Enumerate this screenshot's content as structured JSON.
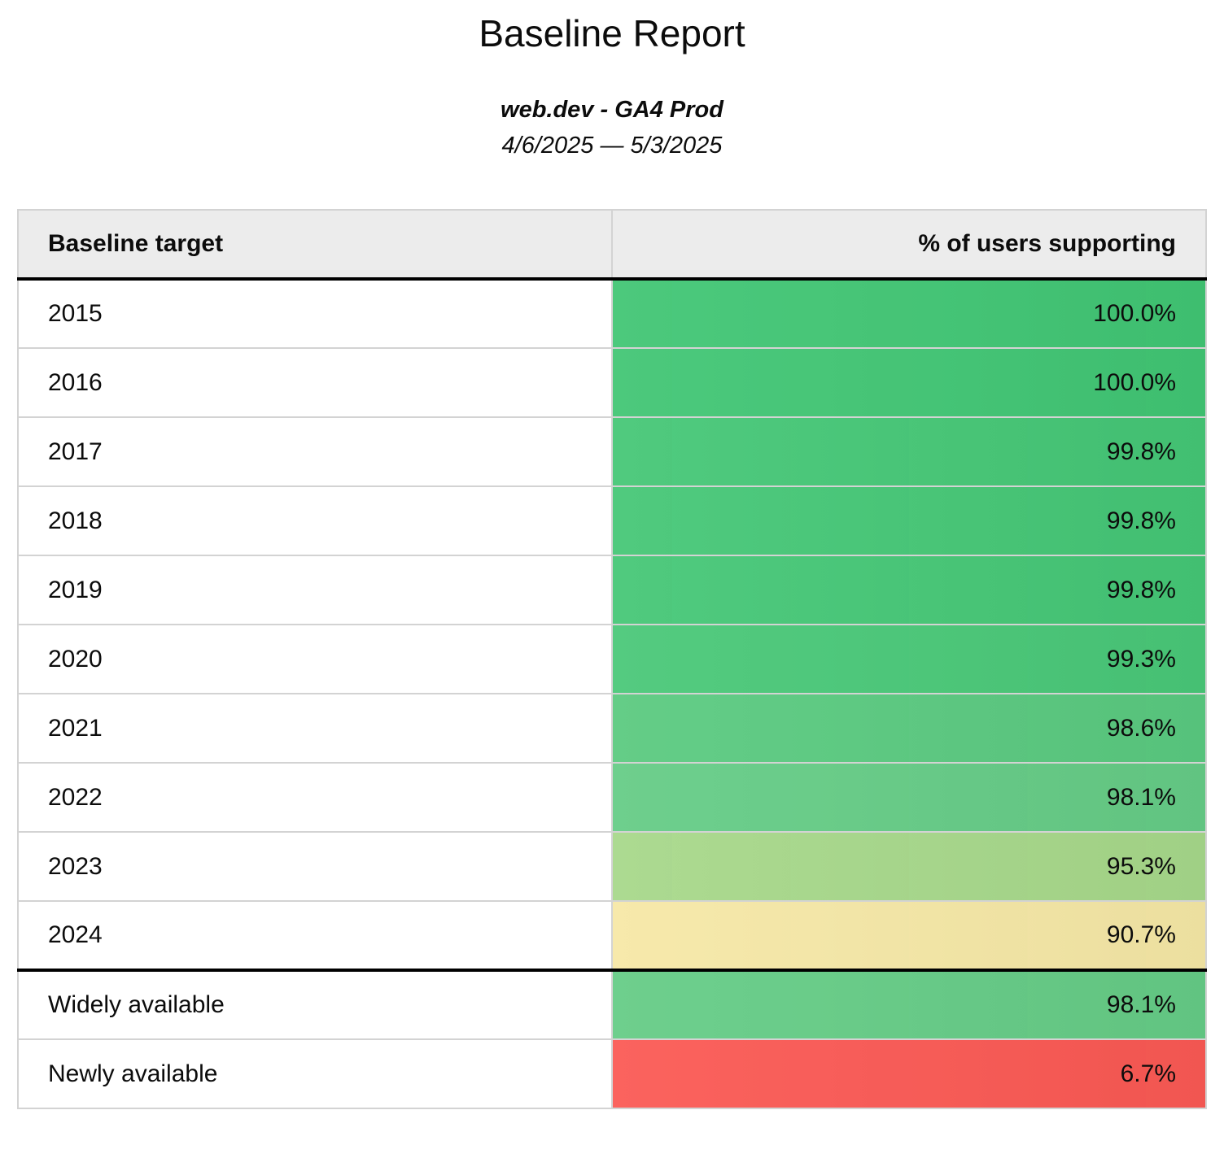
{
  "page": {
    "title": "Baseline Report",
    "subtitle": "web.dev - GA4 Prod",
    "date_range": "4/6/2025 — 5/3/2025"
  },
  "table": {
    "columns": {
      "target": "Baseline target",
      "support": "% of users supporting"
    },
    "rows": [
      {
        "target": "2015",
        "value": "100.0%",
        "color": "#41c674",
        "group": "year"
      },
      {
        "target": "2016",
        "value": "100.0%",
        "color": "#41c674",
        "group": "year"
      },
      {
        "target": "2017",
        "value": "99.8%",
        "color": "#45c776",
        "group": "year"
      },
      {
        "target": "2018",
        "value": "99.8%",
        "color": "#45c776",
        "group": "year"
      },
      {
        "target": "2019",
        "value": "99.8%",
        "color": "#45c776",
        "group": "year"
      },
      {
        "target": "2020",
        "value": "99.3%",
        "color": "#49c878",
        "group": "year"
      },
      {
        "target": "2021",
        "value": "98.6%",
        "color": "#5aca80",
        "group": "year"
      },
      {
        "target": "2022",
        "value": "98.1%",
        "color": "#65cc86",
        "group": "year"
      },
      {
        "target": "2023",
        "value": "95.3%",
        "color": "#a7d88a",
        "group": "year"
      },
      {
        "target": "2024",
        "value": "90.7%",
        "color": "#f6e8a6",
        "group": "year"
      },
      {
        "target": "Widely available",
        "value": "98.1%",
        "color": "#65cc86",
        "group": "availability"
      },
      {
        "target": "Newly available",
        "value": "6.7%",
        "color": "#fb5954",
        "group": "availability"
      }
    ]
  },
  "chart_data": {
    "type": "table",
    "title": "Baseline Report",
    "subtitle": "web.dev - GA4 Prod",
    "date_range": "4/6/2025 — 5/3/2025",
    "columns": [
      "Baseline target",
      "% of users supporting"
    ],
    "categories": [
      "2015",
      "2016",
      "2017",
      "2018",
      "2019",
      "2020",
      "2021",
      "2022",
      "2023",
      "2024",
      "Widely available",
      "Newly available"
    ],
    "values": [
      100.0,
      100.0,
      99.8,
      99.8,
      99.8,
      99.3,
      98.6,
      98.1,
      95.3,
      90.7,
      98.1,
      6.7
    ],
    "value_unit": "%",
    "color_scale": "red-yellow-green heatmap on value column",
    "heatmap_colors": {
      "high": "#41c674",
      "mid": "#f6e8a6",
      "low": "#fb5954"
    }
  }
}
